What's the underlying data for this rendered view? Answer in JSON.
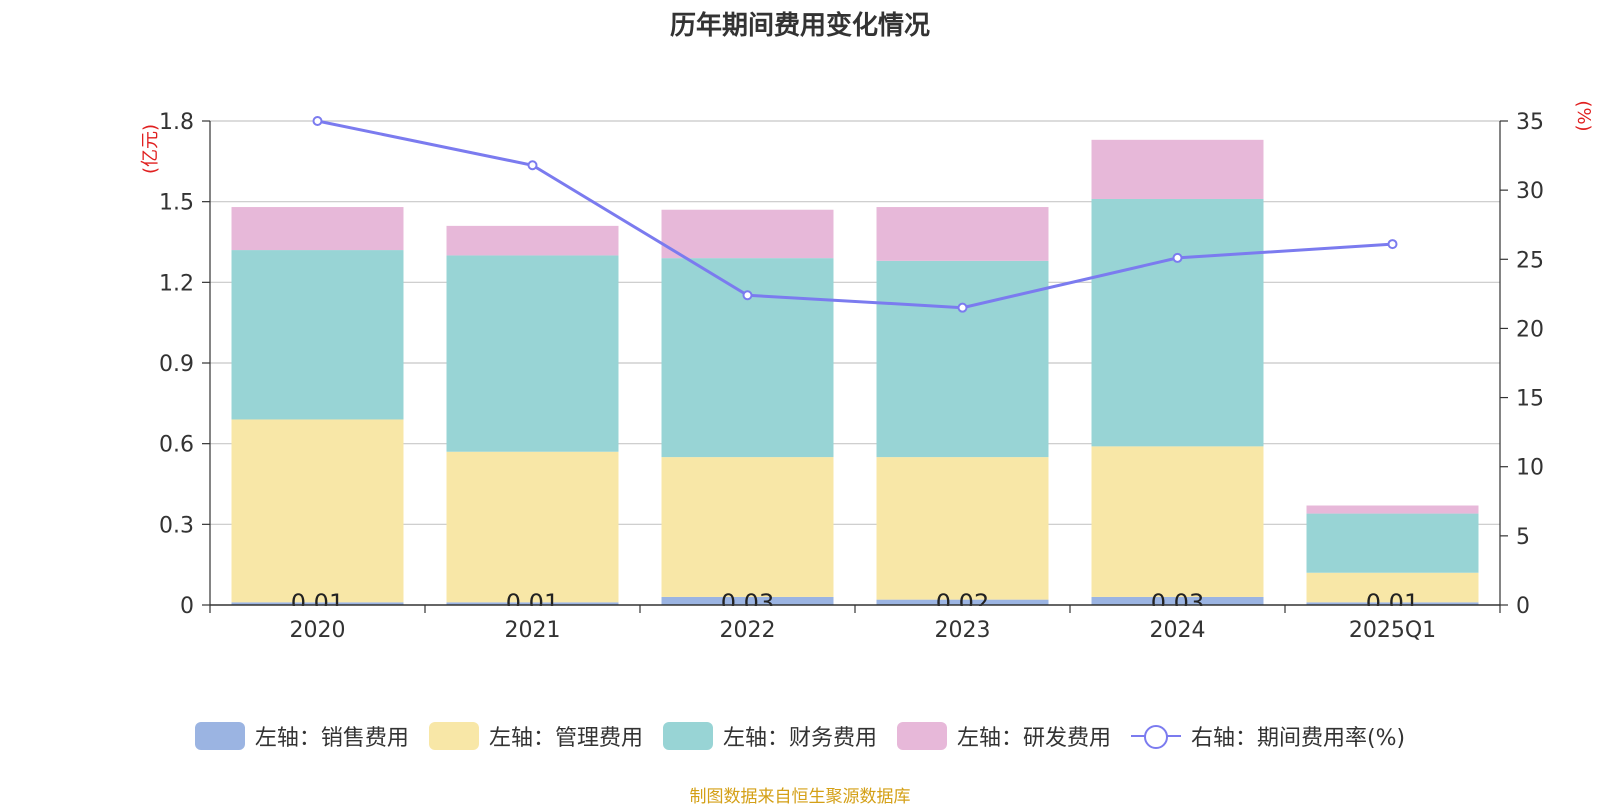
{
  "chart_data": {
    "type": "bar",
    "title": "历年期间费用变化情况",
    "categories": [
      "2020",
      "2021",
      "2022",
      "2023",
      "2024",
      "2025Q1"
    ],
    "left_axis": {
      "unit_label": "(亿元)",
      "ylim": [
        0,
        1.8
      ],
      "ticks": [
        "0",
        "0.3",
        "0.6",
        "0.9",
        "1.2",
        "1.5",
        "1.8"
      ]
    },
    "right_axis": {
      "unit_label": "(%)",
      "ylim": [
        0,
        35
      ],
      "ticks": [
        "0",
        "5",
        "10",
        "15",
        "20",
        "25",
        "30",
        "35"
      ]
    },
    "stacked": true,
    "series": [
      {
        "name": "左轴：销售费用",
        "type": "bar",
        "axis": "left",
        "color": "#9bb4e2",
        "values": [
          0.01,
          0.01,
          0.03,
          0.02,
          0.03,
          0.01
        ],
        "labels": [
          "0.01",
          "0.01",
          "0.03",
          "0.02",
          "0.03",
          "0.01"
        ]
      },
      {
        "name": "左轴：管理费用",
        "type": "bar",
        "axis": "left",
        "color": "#f8e7a7",
        "values": [
          0.68,
          0.56,
          0.52,
          0.53,
          0.56,
          0.11
        ]
      },
      {
        "name": "左轴：财务费用",
        "type": "bar",
        "axis": "left",
        "color": "#98d4d5",
        "values": [
          0.63,
          0.73,
          0.74,
          0.73,
          0.92,
          0.22
        ]
      },
      {
        "name": "左轴：研发费用",
        "type": "bar",
        "axis": "left",
        "color": "#e7b8d9",
        "values": [
          0.16,
          0.11,
          0.18,
          0.2,
          0.22,
          0.03
        ]
      },
      {
        "name": "右轴：期间费用率(%)",
        "type": "line",
        "axis": "right",
        "color": "#7b7bef",
        "values": [
          35.0,
          31.8,
          22.4,
          21.5,
          25.1,
          26.1
        ]
      }
    ],
    "legend_position": "bottom",
    "grid": true
  },
  "source_note": "制图数据来自恒生聚源数据库"
}
